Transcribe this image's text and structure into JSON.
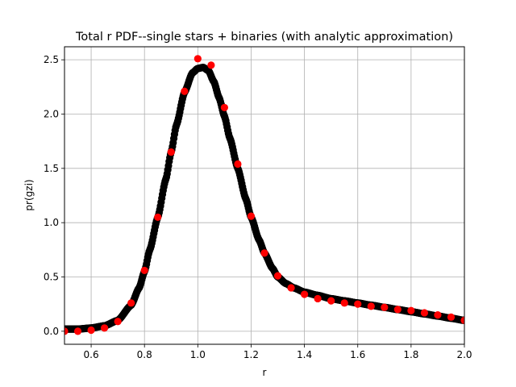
{
  "chart_data": {
    "type": "scatter",
    "title": "Total r PDF--single stars + binaries (with analytic approximation)",
    "xlabel": "r",
    "ylabel": "pr(gzi)",
    "xlim": [
      0.5,
      2.0
    ],
    "ylim": [
      -0.12,
      2.62
    ],
    "xticks": [
      "0.6",
      "0.8",
      "1.0",
      "1.2",
      "1.4",
      "1.6",
      "1.8",
      "2.0"
    ],
    "yticks": [
      "0.0",
      "0.5",
      "1.0",
      "1.5",
      "2.0",
      "2.5"
    ],
    "grid": true,
    "series": [
      {
        "color": "#000000",
        "marker": "circle",
        "dense": true,
        "x": [
          0.5,
          0.55,
          0.6,
          0.65,
          0.7,
          0.75,
          0.78,
          0.8,
          0.82,
          0.85,
          0.88,
          0.9,
          0.92,
          0.95,
          0.98,
          1.0,
          1.02,
          1.04,
          1.06,
          1.08,
          1.1,
          1.12,
          1.15,
          1.18,
          1.2,
          1.23,
          1.25,
          1.28,
          1.3,
          1.33,
          1.36,
          1.4,
          1.45,
          1.5,
          1.55,
          1.6,
          1.65,
          1.7,
          1.75,
          1.8,
          1.85,
          1.9,
          1.95,
          2.0
        ],
        "y": [
          0.02,
          0.02,
          0.03,
          0.05,
          0.1,
          0.24,
          0.4,
          0.55,
          0.75,
          1.05,
          1.4,
          1.65,
          1.9,
          2.2,
          2.38,
          2.42,
          2.43,
          2.4,
          2.3,
          2.15,
          1.98,
          1.78,
          1.5,
          1.22,
          1.05,
          0.84,
          0.72,
          0.58,
          0.5,
          0.44,
          0.4,
          0.36,
          0.33,
          0.3,
          0.28,
          0.26,
          0.24,
          0.22,
          0.2,
          0.18,
          0.16,
          0.14,
          0.12,
          0.1
        ]
      },
      {
        "color": "#ff0000",
        "marker": "circle",
        "x": [
          0.5,
          0.55,
          0.6,
          0.65,
          0.7,
          0.75,
          0.8,
          0.85,
          0.9,
          0.95,
          1.0,
          1.05,
          1.1,
          1.15,
          1.2,
          1.25,
          1.3,
          1.35,
          1.4,
          1.45,
          1.5,
          1.55,
          1.6,
          1.65,
          1.7,
          1.75,
          1.8,
          1.85,
          1.9,
          1.95,
          2.0
        ],
        "y": [
          0.0,
          0.0,
          0.01,
          0.03,
          0.09,
          0.26,
          0.56,
          1.05,
          1.65,
          2.21,
          2.51,
          2.45,
          2.06,
          1.54,
          1.06,
          0.72,
          0.51,
          0.4,
          0.34,
          0.3,
          0.28,
          0.26,
          0.25,
          0.23,
          0.22,
          0.2,
          0.19,
          0.17,
          0.15,
          0.13,
          0.1
        ]
      }
    ]
  }
}
